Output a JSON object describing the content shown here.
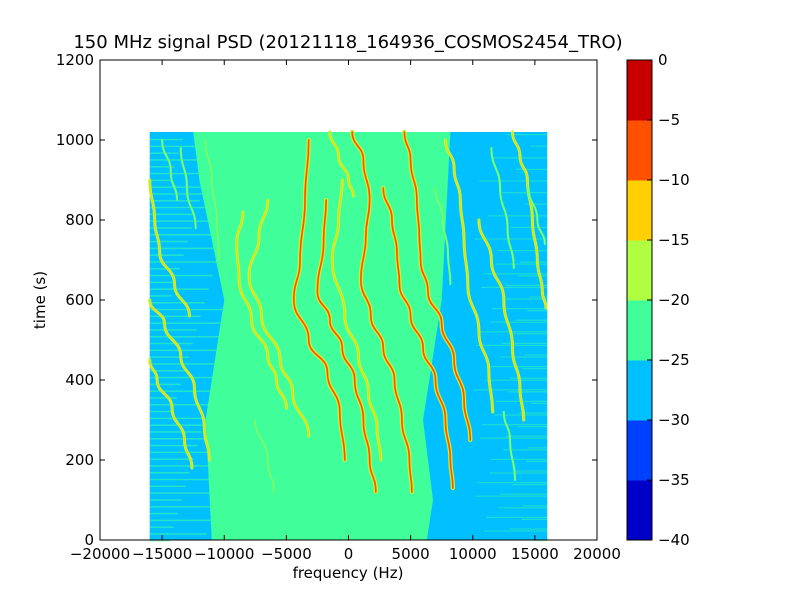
{
  "chart_data": {
    "type": "heatmap",
    "title": "150 MHz signal PSD (20121118_164936_COSMOS2454_TRO)",
    "xlabel": "frequency (Hz)",
    "ylabel": "time (s)",
    "xlim": [
      -20000,
      20000
    ],
    "ylim": [
      0,
      1200
    ],
    "x_ticks": [
      -20000,
      -15000,
      -10000,
      -5000,
      0,
      5000,
      10000,
      15000,
      20000
    ],
    "x_tick_labels": [
      "−20000",
      "−15000",
      "−10000",
      "−5000",
      "0",
      "5000",
      "10000",
      "15000",
      "20000"
    ],
    "y_ticks": [
      0,
      200,
      400,
      600,
      800,
      1000,
      1200
    ],
    "y_tick_labels": [
      "0",
      "200",
      "400",
      "600",
      "800",
      "1000",
      "1200"
    ],
    "data_extent": {
      "x": [
        -16000,
        16000
      ],
      "y": [
        0,
        1020
      ]
    },
    "background_level_center": -22.5,
    "background_level_edges": -27.5,
    "colorbar": {
      "levels": [
        -40,
        -35,
        -30,
        -25,
        -20,
        -15,
        -10,
        -5,
        0
      ],
      "tick_labels": [
        "−40",
        "−35",
        "−30",
        "−25",
        "−20",
        "−15",
        "−10",
        "−5",
        "0"
      ],
      "colors": [
        "#0000c8",
        "#0040ff",
        "#00c0ff",
        "#40ff9a",
        "#b0ff40",
        "#ffd000",
        "#ff5000",
        "#c80000"
      ]
    },
    "traces": [
      {
        "kind": "strong",
        "points": [
          [
            -3200,
            1000
          ],
          [
            -3500,
            850
          ],
          [
            -3900,
            700
          ],
          [
            -4400,
            600
          ],
          [
            -3200,
            500
          ],
          [
            -1700,
            420
          ],
          [
            -700,
            320
          ],
          [
            -300,
            200
          ]
        ]
      },
      {
        "kind": "strong",
        "points": [
          [
            -1800,
            850
          ],
          [
            -2000,
            750
          ],
          [
            -2500,
            620
          ],
          [
            -1500,
            550
          ],
          [
            -500,
            480
          ],
          [
            500,
            400
          ],
          [
            1200,
            300
          ],
          [
            1700,
            200
          ],
          [
            2200,
            120
          ]
        ]
      },
      {
        "kind": "strong",
        "points": [
          [
            300,
            1020
          ],
          [
            1200,
            950
          ],
          [
            1700,
            850
          ],
          [
            1400,
            760
          ],
          [
            1000,
            650
          ],
          [
            1800,
            560
          ],
          [
            2800,
            480
          ],
          [
            3700,
            400
          ],
          [
            4300,
            300
          ],
          [
            4900,
            200
          ],
          [
            5100,
            120
          ]
        ]
      },
      {
        "kind": "strong",
        "points": [
          [
            4500,
            1020
          ],
          [
            5000,
            950
          ],
          [
            5500,
            850
          ],
          [
            5700,
            760
          ],
          [
            5800,
            700
          ],
          [
            6400,
            620
          ],
          [
            7500,
            540
          ],
          [
            8500,
            450
          ],
          [
            9300,
            350
          ],
          [
            9800,
            250
          ]
        ]
      },
      {
        "kind": "strong",
        "points": [
          [
            2800,
            880
          ],
          [
            3500,
            800
          ],
          [
            3900,
            720
          ],
          [
            4100,
            640
          ],
          [
            5000,
            560
          ],
          [
            6000,
            480
          ],
          [
            7000,
            400
          ],
          [
            7800,
            300
          ],
          [
            8200,
            200
          ],
          [
            8400,
            130
          ]
        ]
      },
      {
        "kind": "medium",
        "points": [
          [
            -500,
            900
          ],
          [
            -800,
            800
          ],
          [
            -1300,
            700
          ],
          [
            -300,
            560
          ],
          [
            800,
            460
          ],
          [
            1600,
            370
          ],
          [
            2300,
            280
          ],
          [
            2600,
            200
          ]
        ]
      },
      {
        "kind": "medium",
        "points": [
          [
            -6500,
            850
          ],
          [
            -7200,
            760
          ],
          [
            -8000,
            660
          ],
          [
            -7000,
            560
          ],
          [
            -5500,
            450
          ],
          [
            -4500,
            370
          ],
          [
            -3200,
            260
          ]
        ]
      },
      {
        "kind": "medium",
        "points": [
          [
            -8500,
            820
          ],
          [
            -9000,
            740
          ],
          [
            -8800,
            650
          ],
          [
            -7800,
            550
          ],
          [
            -6500,
            460
          ],
          [
            -5800,
            400
          ],
          [
            -5000,
            330
          ]
        ]
      },
      {
        "kind": "medium",
        "points": [
          [
            -1500,
            1020
          ],
          [
            -800,
            960
          ],
          [
            0,
            900
          ],
          [
            400,
            860
          ]
        ]
      },
      {
        "kind": "medium",
        "points": [
          [
            7800,
            1000
          ],
          [
            8500,
            930
          ],
          [
            9000,
            850
          ],
          [
            9300,
            750
          ],
          [
            9600,
            640
          ],
          [
            10500,
            520
          ],
          [
            11300,
            420
          ],
          [
            11600,
            320
          ]
        ]
      },
      {
        "kind": "medium",
        "points": [
          [
            10500,
            800
          ],
          [
            11500,
            700
          ],
          [
            12500,
            600
          ],
          [
            13200,
            480
          ],
          [
            13800,
            380
          ],
          [
            14100,
            300
          ]
        ]
      },
      {
        "kind": "medium",
        "points": [
          [
            13200,
            1020
          ],
          [
            13800,
            960
          ],
          [
            14400,
            900
          ],
          [
            14800,
            800
          ],
          [
            15200,
            700
          ],
          [
            15600,
            620
          ],
          [
            15900,
            580
          ]
        ]
      },
      {
        "kind": "medium",
        "points": [
          [
            -16000,
            600
          ],
          [
            -14800,
            540
          ],
          [
            -13500,
            460
          ],
          [
            -12400,
            380
          ],
          [
            -11600,
            280
          ],
          [
            -11200,
            200
          ]
        ]
      },
      {
        "kind": "medium",
        "points": [
          [
            -16000,
            900
          ],
          [
            -15600,
            800
          ],
          [
            -15200,
            720
          ],
          [
            -14000,
            640
          ],
          [
            -12800,
            560
          ]
        ]
      },
      {
        "kind": "medium",
        "points": [
          [
            -16000,
            450
          ],
          [
            -15400,
            400
          ],
          [
            -14200,
            330
          ],
          [
            -13200,
            250
          ],
          [
            -12600,
            180
          ]
        ]
      },
      {
        "kind": "faint",
        "points": [
          [
            -11500,
            1000
          ],
          [
            -11000,
            900
          ],
          [
            -10600,
            800
          ],
          [
            -10400,
            700
          ]
        ]
      },
      {
        "kind": "faint",
        "points": [
          [
            -13500,
            980
          ],
          [
            -13000,
            880
          ],
          [
            -12300,
            780
          ]
        ]
      },
      {
        "kind": "faint",
        "points": [
          [
            -15000,
            1000
          ],
          [
            -14300,
            920
          ],
          [
            -13800,
            850
          ]
        ]
      },
      {
        "kind": "faint",
        "points": [
          [
            7000,
            880
          ],
          [
            7600,
            800
          ],
          [
            8000,
            720
          ],
          [
            8200,
            640
          ]
        ]
      },
      {
        "kind": "faint",
        "points": [
          [
            11500,
            980
          ],
          [
            12200,
            880
          ],
          [
            12800,
            780
          ],
          [
            13300,
            680
          ]
        ]
      },
      {
        "kind": "faint",
        "points": [
          [
            14500,
            880
          ],
          [
            15200,
            800
          ],
          [
            15800,
            740
          ]
        ]
      },
      {
        "kind": "faint",
        "points": [
          [
            12500,
            320
          ],
          [
            13000,
            250
          ],
          [
            13400,
            150
          ]
        ]
      },
      {
        "kind": "faint",
        "points": [
          [
            -7500,
            300
          ],
          [
            -6500,
            200
          ],
          [
            -6000,
            120
          ]
        ]
      }
    ]
  }
}
